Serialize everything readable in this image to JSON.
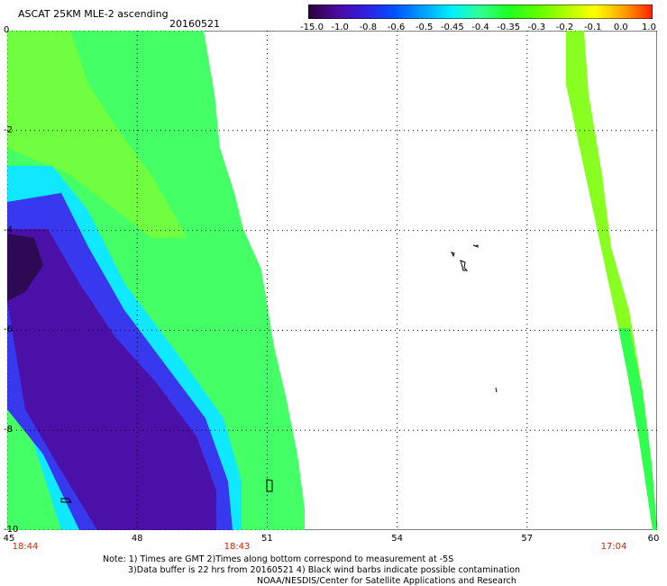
{
  "header": {
    "title": "ASCAT 25KM MLE-2 ascending",
    "date": "20160521"
  },
  "colorbar": {
    "labels": [
      "-15.0",
      "-1.0",
      "-0.8",
      "-0.6",
      "-0.5",
      "-0.45",
      "-0.4",
      "-0.35",
      "-0.3",
      "-0.2",
      "-0.1",
      "0.0",
      "1.0"
    ],
    "colors": [
      "#2a0038",
      "#4b0aa0",
      "#3020e0",
      "#0050ff",
      "#00a0ff",
      "#00f0ff",
      "#30ff90",
      "#20ff20",
      "#60ff00",
      "#b0ff00",
      "#ffff00",
      "#ffa000",
      "#ff2000"
    ]
  },
  "map": {
    "y_ticks": [
      "0",
      "-2",
      "-4",
      "-6",
      "-8",
      "-10"
    ],
    "x_ticks": [
      "45",
      "48",
      "51",
      "54",
      "57",
      "60"
    ],
    "lat_range": [
      -10,
      0
    ],
    "lon_range": [
      45,
      60
    ],
    "grid": "dotted",
    "times": [
      "18:44",
      "18:43",
      "17:04"
    ],
    "time_color": "#cc2200"
  },
  "notes": {
    "line1": "Note: 1) Times are GMT 2)Times along bottom correspond to measurement at -5S",
    "line2": "3)Data buffer is 22 hrs from 20160521 4) Black wind barbs indicate possible contamination",
    "line3": "NOAA/NESDIS/Center for Satellite Applications and Research"
  }
}
